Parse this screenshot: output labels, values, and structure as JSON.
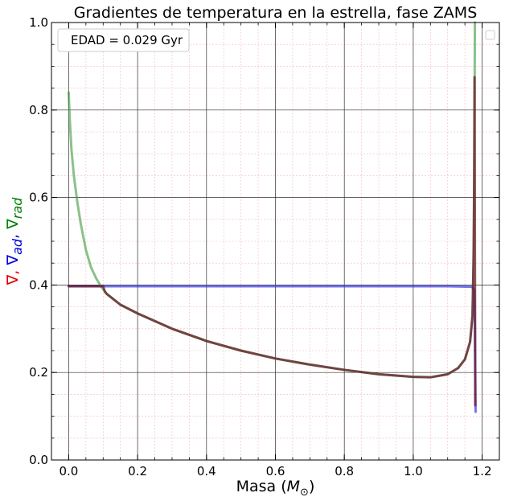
{
  "chart_data": {
    "type": "line",
    "title": "Gradientes de temperatura en la estrella, fase ZAMS",
    "xlabel": {
      "prefix": "Masa (",
      "symbol": "M",
      "subscript": "⊙",
      "suffix": ")"
    },
    "ylabel": [
      {
        "symbol": "∇",
        "subscript": "",
        "sep": ",",
        "color": "#e00000"
      },
      {
        "symbol": "∇",
        "subscript": "ad",
        "sep": ",",
        "color": "#0000e0"
      },
      {
        "symbol": "∇",
        "subscript": "rad",
        "sep": "",
        "color": "#008000"
      }
    ],
    "xlim": [
      -0.05,
      1.25
    ],
    "ylim": [
      0.0,
      1.0
    ],
    "xticks": [
      0.0,
      0.2,
      0.4,
      0.6,
      0.8,
      1.0,
      1.2
    ],
    "xtick_labels": [
      "0.0",
      "0.2",
      "0.4",
      "0.6",
      "0.8",
      "1.0",
      "1.2"
    ],
    "yticks": [
      0.0,
      0.2,
      0.4,
      0.6,
      0.8,
      1.0
    ],
    "ytick_labels": [
      "0.0",
      "0.2",
      "0.4",
      "0.6",
      "0.8",
      "1.0"
    ],
    "grid": true,
    "minor_grid": true,
    "legend": {
      "text": "EDAD = 0.029 Gyr",
      "placement": "top-left"
    },
    "series": [
      {
        "key": "nabla_rad",
        "color": "#3a9a3a",
        "opacity": 0.6,
        "points": [
          [
            0.0,
            0.84
          ],
          [
            0.003,
            0.78
          ],
          [
            0.008,
            0.71
          ],
          [
            0.015,
            0.65
          ],
          [
            0.025,
            0.59
          ],
          [
            0.035,
            0.54
          ],
          [
            0.05,
            0.48
          ],
          [
            0.065,
            0.44
          ],
          [
            0.08,
            0.415
          ],
          [
            0.095,
            0.395
          ],
          [
            0.1,
            0.39
          ],
          [
            0.11,
            0.38
          ],
          [
            0.15,
            0.355
          ],
          [
            0.2,
            0.335
          ],
          [
            0.3,
            0.3
          ],
          [
            0.4,
            0.272
          ],
          [
            0.5,
            0.25
          ],
          [
            0.6,
            0.232
          ],
          [
            0.7,
            0.218
          ],
          [
            0.8,
            0.206
          ],
          [
            0.9,
            0.196
          ],
          [
            1.0,
            0.19
          ],
          [
            1.05,
            0.189
          ],
          [
            1.1,
            0.196
          ],
          [
            1.13,
            0.21
          ],
          [
            1.15,
            0.23
          ],
          [
            1.165,
            0.27
          ],
          [
            1.172,
            0.33
          ],
          [
            1.176,
            0.5
          ],
          [
            1.178,
            0.8
          ],
          [
            1.179,
            1.0
          ]
        ]
      },
      {
        "key": "nabla_ad",
        "color": "#3a3ae0",
        "opacity": 0.7,
        "points": [
          [
            0.0,
            0.397
          ],
          [
            0.3,
            0.397
          ],
          [
            0.6,
            0.397
          ],
          [
            0.9,
            0.397
          ],
          [
            1.1,
            0.397
          ],
          [
            1.17,
            0.396
          ],
          [
            1.177,
            0.39
          ],
          [
            1.179,
            0.3
          ],
          [
            1.18,
            0.2
          ],
          [
            1.181,
            0.11
          ]
        ]
      },
      {
        "key": "nabla",
        "color": "#6a1a2a",
        "opacity": 0.75,
        "points": [
          [
            0.0,
            0.397
          ],
          [
            0.1,
            0.397
          ],
          [
            0.105,
            0.385
          ],
          [
            0.11,
            0.38
          ],
          [
            0.15,
            0.355
          ],
          [
            0.2,
            0.335
          ],
          [
            0.3,
            0.3
          ],
          [
            0.4,
            0.272
          ],
          [
            0.5,
            0.25
          ],
          [
            0.6,
            0.232
          ],
          [
            0.7,
            0.218
          ],
          [
            0.8,
            0.206
          ],
          [
            0.9,
            0.196
          ],
          [
            1.0,
            0.19
          ],
          [
            1.05,
            0.189
          ],
          [
            1.1,
            0.196
          ],
          [
            1.13,
            0.21
          ],
          [
            1.15,
            0.23
          ],
          [
            1.165,
            0.27
          ],
          [
            1.172,
            0.33
          ],
          [
            1.175,
            0.45
          ],
          [
            1.177,
            0.65
          ],
          [
            1.178,
            0.875
          ],
          [
            1.179,
            0.5
          ],
          [
            1.18,
            0.125
          ]
        ]
      }
    ]
  }
}
